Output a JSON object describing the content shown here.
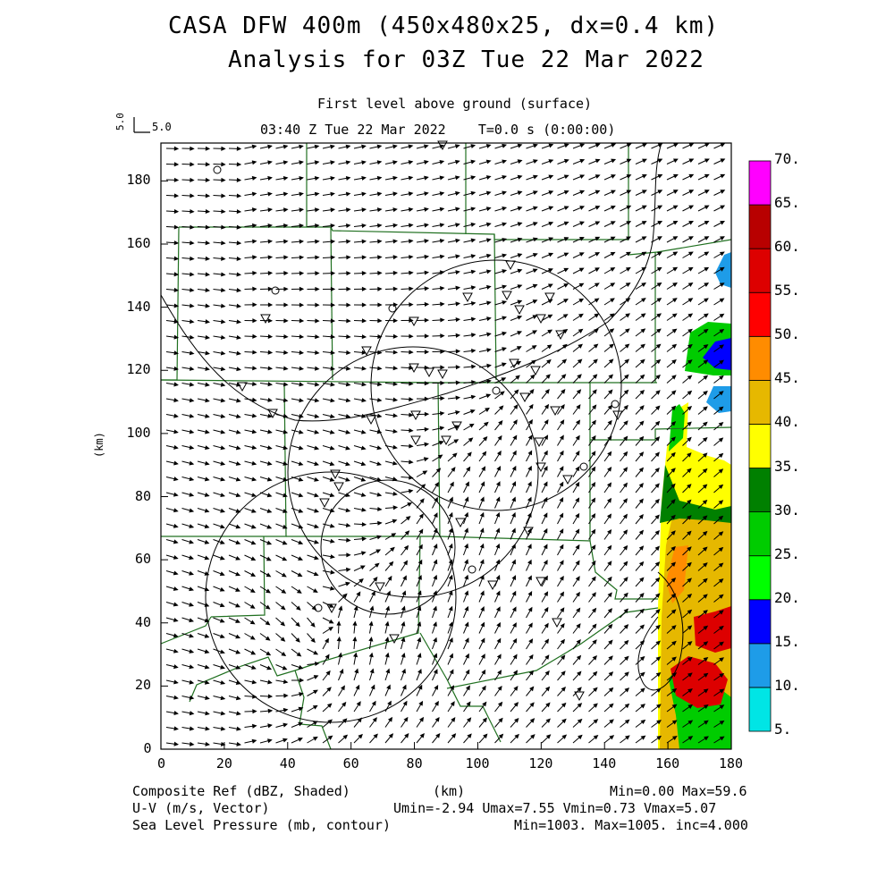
{
  "title_line1": "CASA DFW 400m (450x480x25, dx=0.4 km)",
  "title_line2": "Analysis for 03Z Tue 22 Mar 2022",
  "subtitle_level": "First level above ground (surface)",
  "subtitle_time": "03:40 Z Tue 22 Mar 2022    T=0.0 s (0:00:00)",
  "ref_vector": {
    "label_vertical": "5.0",
    "label_horizontal": "5.0"
  },
  "axes": {
    "x_label": "(km)",
    "y_label": "(km)",
    "x_ticks": [
      "0",
      "20",
      "40",
      "60",
      "80",
      "100",
      "120",
      "140",
      "160",
      "180"
    ],
    "y_ticks": [
      "0",
      "20",
      "40",
      "60",
      "80",
      "100",
      "120",
      "140",
      "160",
      "180"
    ],
    "x_range": [
      0,
      180
    ],
    "y_range": [
      0,
      192
    ]
  },
  "colorbar": {
    "labels": [
      "5.",
      "10.",
      "15.",
      "20.",
      "25.",
      "30.",
      "35.",
      "40.",
      "45.",
      "50.",
      "55.",
      "60.",
      "65.",
      "70."
    ],
    "colors": [
      "#00e5e5",
      "#1e9ce8",
      "#0000ff",
      "#00ff00",
      "#00cc00",
      "#008000",
      "#ffff00",
      "#e6b800",
      "#ff8c00",
      "#ff0000",
      "#dd0000",
      "#b80000",
      "#ff00ff"
    ]
  },
  "footer": {
    "left_line1": "Composite Ref (dBZ, Shaded)",
    "left_line2": "U-V (m/s, Vector)",
    "left_line3": "Sea Level Pressure (mb, contour)",
    "center_line1": "(km)",
    "right_line1": "Min=0.00 Max=59.6",
    "right_line2": "Umin=-2.94 Umax=7.55 Vmin=0.73 Vmax=5.07",
    "right_line3": "Min=1003. Max=1005. inc=4.000"
  }
}
